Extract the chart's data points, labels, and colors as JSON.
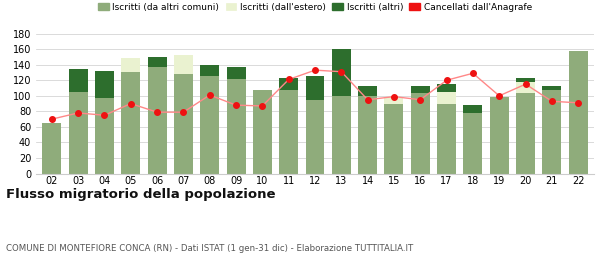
{
  "years": [
    "02",
    "03",
    "04",
    "05",
    "06",
    "07",
    "08",
    "09",
    "10",
    "11",
    "12",
    "13",
    "14",
    "15",
    "16",
    "17",
    "18",
    "19",
    "20",
    "21",
    "22"
  ],
  "iscritti_altri_comuni": [
    65,
    105,
    97,
    130,
    137,
    128,
    125,
    122,
    108,
    108,
    95,
    100,
    100,
    90,
    103,
    90,
    78,
    98,
    103,
    108,
    158
  ],
  "iscritti_estero": [
    0,
    0,
    0,
    18,
    0,
    25,
    0,
    0,
    0,
    0,
    0,
    0,
    0,
    8,
    0,
    15,
    0,
    0,
    15,
    0,
    0
  ],
  "iscritti_altri": [
    0,
    30,
    35,
    0,
    13,
    0,
    15,
    15,
    0,
    15,
    30,
    60,
    12,
    0,
    10,
    10,
    10,
    0,
    5,
    5,
    0
  ],
  "cancellati": [
    70,
    78,
    75,
    90,
    79,
    79,
    101,
    88,
    87,
    121,
    133,
    131,
    95,
    99,
    95,
    120,
    129,
    100,
    115,
    93,
    91
  ],
  "color_altri_comuni": "#8fac7b",
  "color_estero": "#eaf2d0",
  "color_altri": "#2d6e2d",
  "color_cancellati": "#ee1111",
  "color_line": "#ff8888",
  "ylim": [
    0,
    180
  ],
  "yticks": [
    0,
    20,
    40,
    60,
    80,
    100,
    120,
    140,
    160,
    180
  ],
  "title": "Flusso migratorio della popolazione",
  "subtitle": "COMUNE DI MONTEFIORE CONCA (RN) - Dati ISTAT (1 gen-31 dic) - Elaborazione TUTTITALIA.IT",
  "legend_labels": [
    "Iscritti (da altri comuni)",
    "Iscritti (dall'estero)",
    "Iscritti (altri)",
    "Cancellati dall'Anagrafe"
  ],
  "bg_color": "#ffffff",
  "grid_color": "#cccccc"
}
